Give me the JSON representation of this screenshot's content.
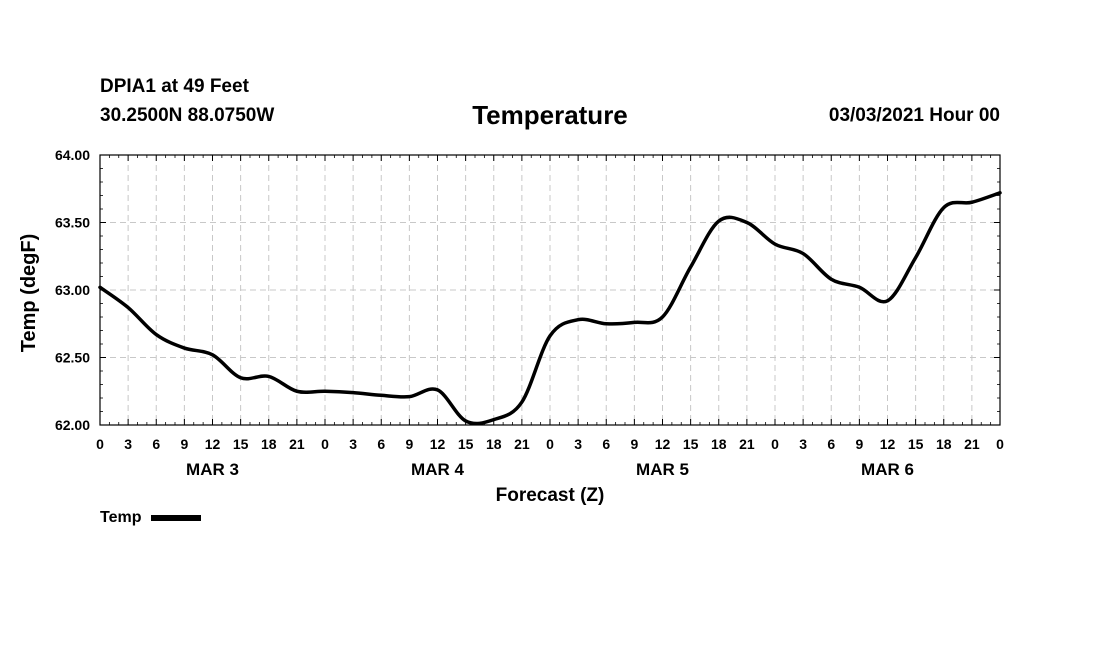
{
  "header": {
    "station": "DPIA1 at 49 Feet",
    "coords": "30.2500N 88.0750W",
    "title": "Temperature",
    "run": "03/03/2021 Hour 00"
  },
  "chart_data": {
    "type": "line",
    "title": "Temperature",
    "xlabel": "Forecast (Z)",
    "ylabel": "Temp (degF)",
    "xlim": [
      0,
      96
    ],
    "ylim": [
      62.0,
      64.0
    ],
    "yticks": [
      62.0,
      62.5,
      63.0,
      63.5,
      64.0
    ],
    "ytick_labels": [
      "62.00",
      "62.50",
      "63.00",
      "63.50",
      "64.00"
    ],
    "xtick_labels": [
      "0",
      "3",
      "6",
      "9",
      "12",
      "15",
      "18",
      "21",
      "0",
      "3",
      "6",
      "9",
      "12",
      "15",
      "18",
      "21",
      "0",
      "3",
      "6",
      "9",
      "12",
      "15",
      "18",
      "21",
      "0",
      "3",
      "6",
      "9",
      "12",
      "15",
      "18",
      "21",
      "0"
    ],
    "days": [
      {
        "label": "MAR 3",
        "center_hour": 12
      },
      {
        "label": "MAR 4",
        "center_hour": 36
      },
      {
        "label": "MAR 5",
        "center_hour": 60
      },
      {
        "label": "MAR 6",
        "center_hour": 84
      }
    ],
    "grid": true,
    "series": [
      {
        "name": "Temp",
        "color": "#000000",
        "x": [
          0,
          3,
          6,
          9,
          12,
          15,
          18,
          21,
          24,
          27,
          30,
          33,
          36,
          39,
          42,
          45,
          48,
          51,
          54,
          57,
          60,
          63,
          66,
          69,
          72,
          75,
          78,
          81,
          84,
          87,
          90,
          93,
          96
        ],
        "values": [
          63.02,
          62.87,
          62.67,
          62.57,
          62.52,
          62.35,
          62.36,
          62.25,
          62.25,
          62.24,
          62.22,
          62.21,
          62.26,
          62.03,
          62.04,
          62.17,
          62.66,
          62.78,
          62.75,
          62.76,
          62.8,
          63.17,
          63.51,
          63.5,
          63.34,
          63.27,
          63.08,
          63.02,
          62.92,
          63.24,
          63.61,
          63.65,
          63.72
        ]
      }
    ]
  },
  "legend": {
    "label": "Temp"
  }
}
